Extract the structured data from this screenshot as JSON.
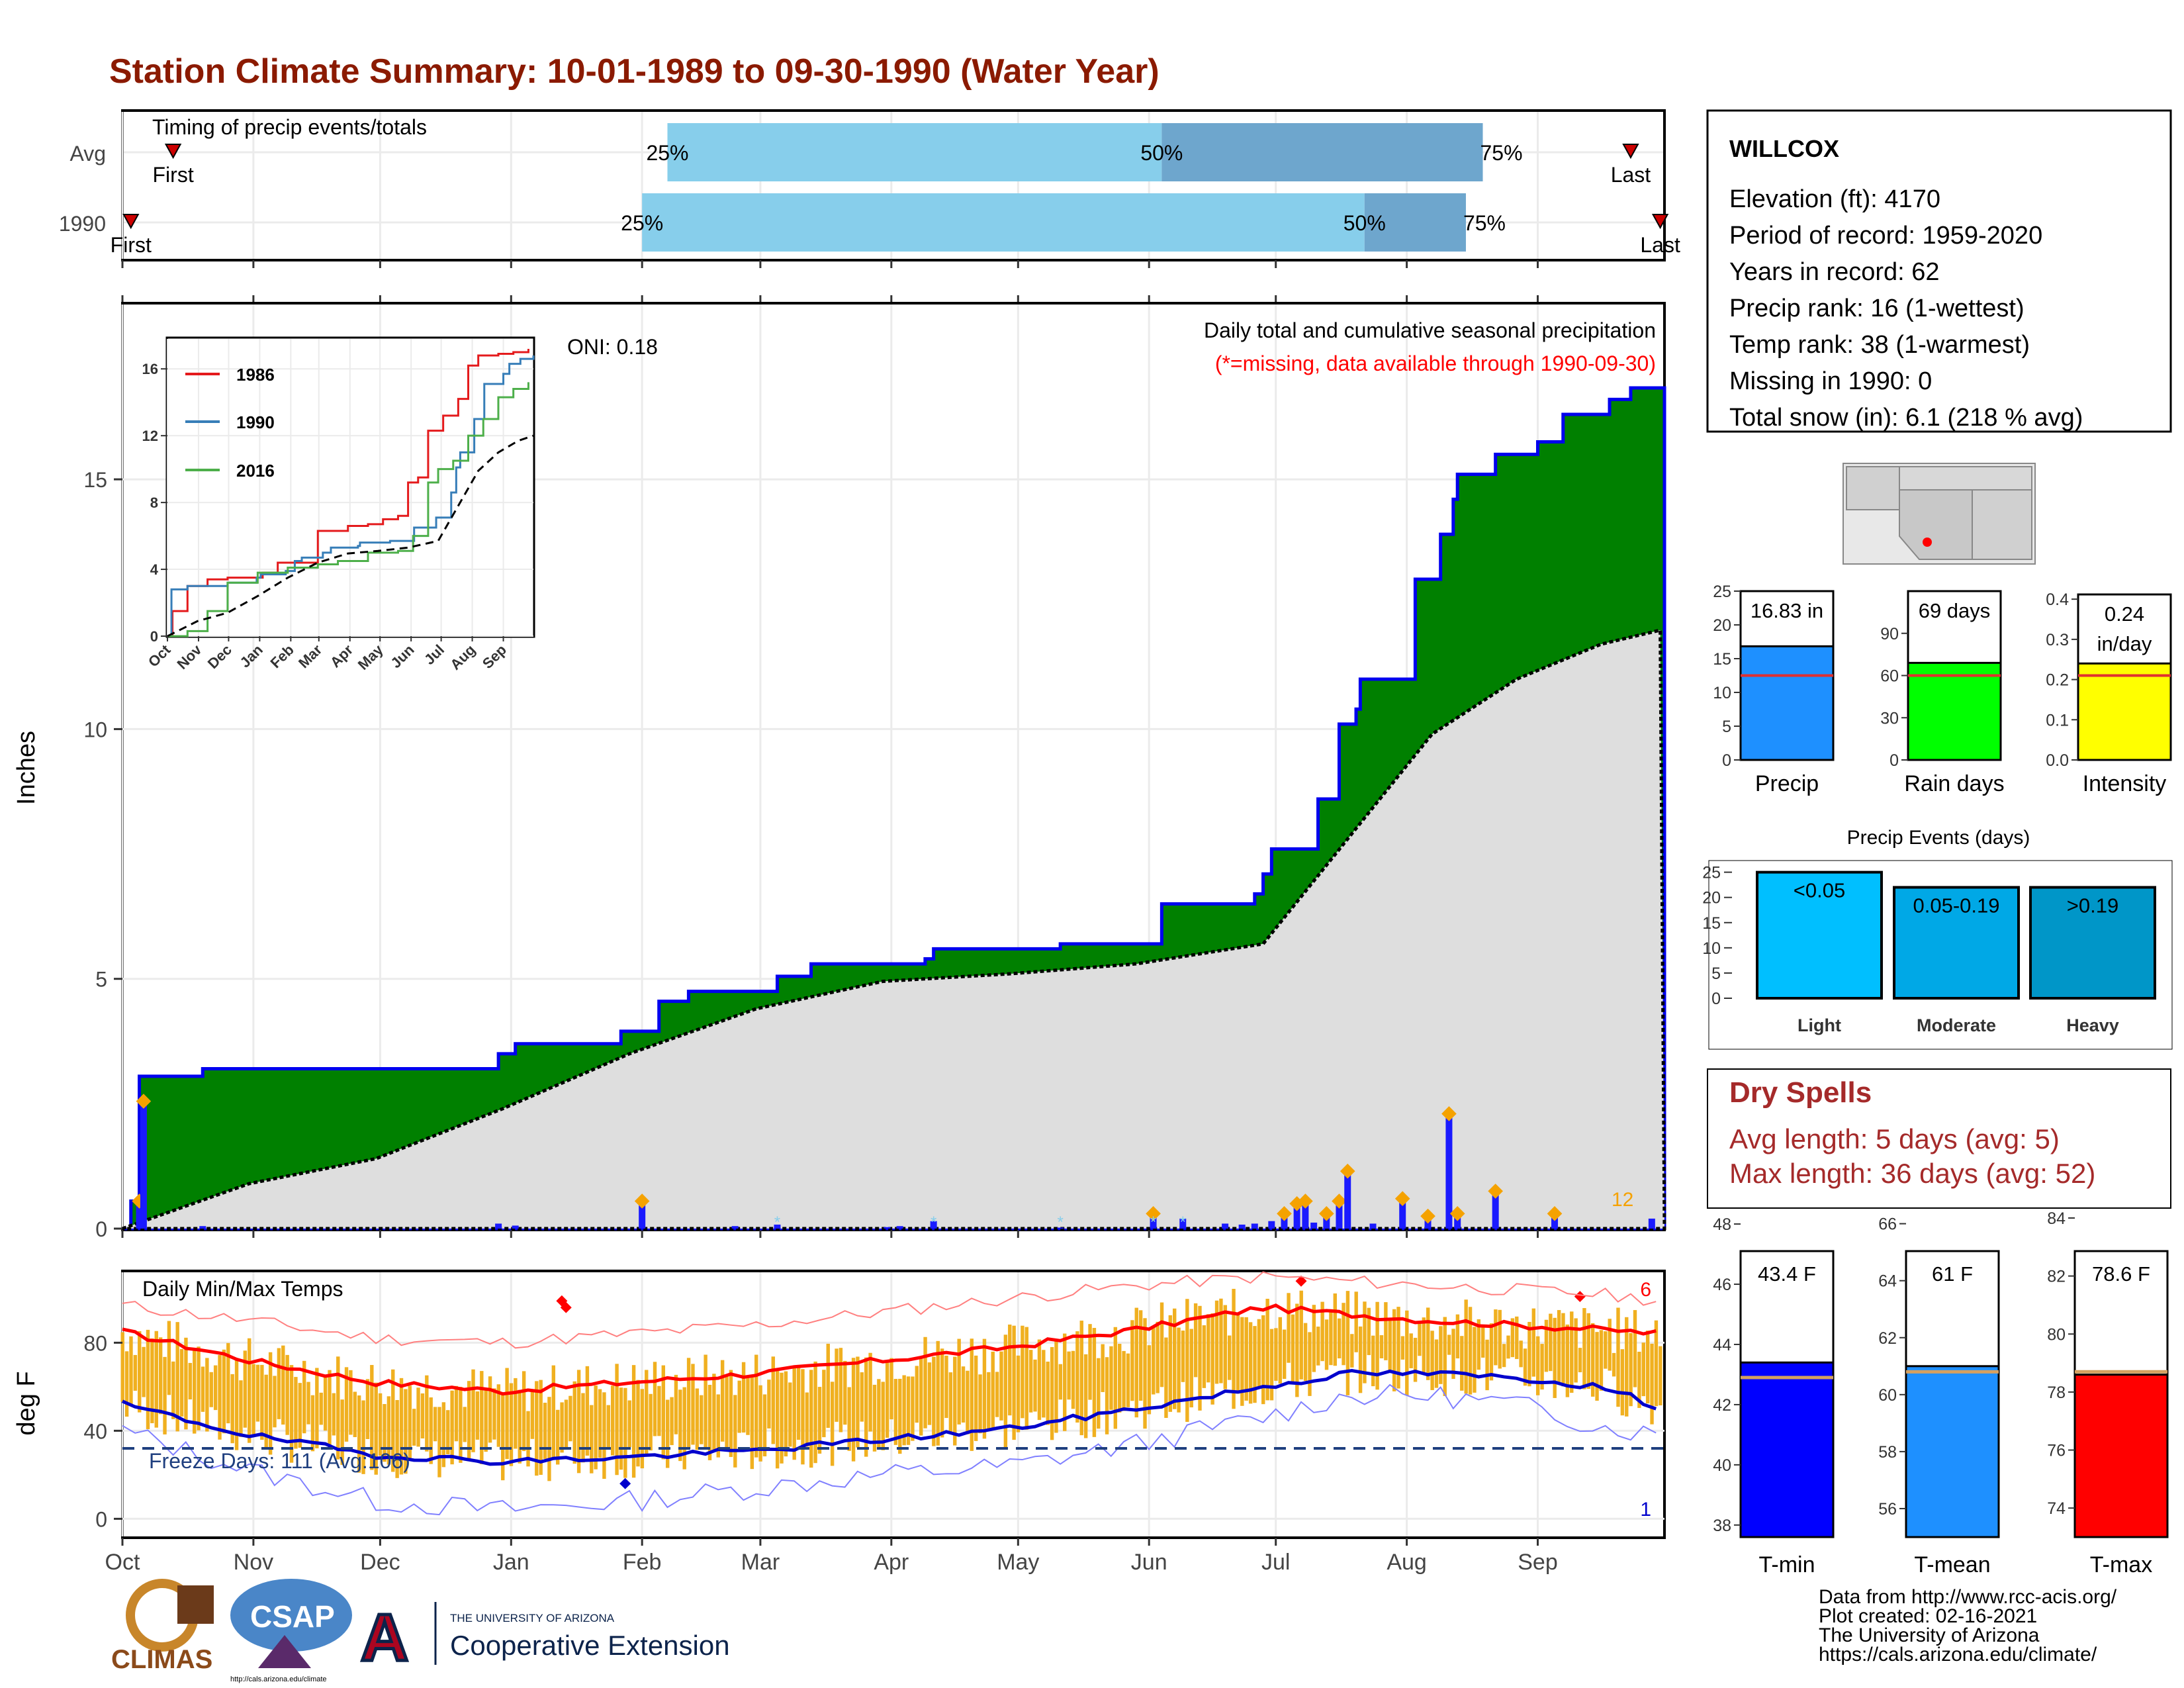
{
  "title": "Station Climate Summary: 10-01-1989 to 09-30-1990 (Water Year)",
  "colors": {
    "title": "#8b1a00",
    "green_fill": "#008000",
    "avg_fill": "#dedede",
    "bar_blue": "#1a1aff",
    "orange": "#f5a200",
    "temp_bar": "#f0b020",
    "tmax_line": "#ff0000",
    "tmin_line": "#0000cc",
    "timing_light": "#87ceeb",
    "timing_dark": "#6ea6cd",
    "dry_red": "#a52a2a"
  },
  "months": [
    "Oct",
    "Nov",
    "Dec",
    "Jan",
    "Feb",
    "Mar",
    "Apr",
    "May",
    "Jun",
    "Jul",
    "Aug",
    "Sep"
  ],
  "timing": {
    "label": "Timing of precip events/totals",
    "rows": [
      {
        "name": "Avg",
        "first": "First",
        "last": "Last",
        "p25": "25%",
        "p50": "50%",
        "p75": "75%",
        "first_day": 12,
        "q25_day": 129,
        "q50_day": 246,
        "q75_day": 322,
        "last_day": 357
      },
      {
        "name": "1990",
        "first": "First",
        "last": "Last",
        "p25": "25%",
        "p50": "50%",
        "p75": "75%",
        "first_day": 2,
        "q25_day": 123,
        "q50_day": 294,
        "q75_day": 318,
        "last_day": 364
      }
    ]
  },
  "main": {
    "ylabel": "Inches",
    "oni": "ONI: 0.18",
    "subtitle": "Daily total and cumulative seasonal precipitation",
    "missing_note": "(*=missing, data available through 1990-09-30)",
    "count_label": "12",
    "yticks": [
      "0",
      "5",
      "10",
      "15"
    ],
    "ymax": 18.5
  },
  "chart_data": [
    {
      "type": "area",
      "title": "Daily total and cumulative seasonal precipitation",
      "ylabel": "Inches",
      "ylim": [
        0,
        18.5
      ],
      "x_unit": "day of water year (Oct 1 = 0)",
      "series": [
        {
          "name": "cumulative 1990",
          "x": [
            0,
            2,
            4,
            19,
            60,
            89,
            93,
            118,
            127,
            134,
            155,
            163,
            190,
            192,
            222,
            246,
            268,
            270,
            272,
            283,
            288,
            292,
            293,
            304,
            306,
            312,
            315,
            316,
            325,
            335,
            341,
            352,
            357,
            362,
            365
          ],
          "values": [
            0,
            0.55,
            3.05,
            3.2,
            3.2,
            3.5,
            3.7,
            3.95,
            4.55,
            4.75,
            5.05,
            5.3,
            5.4,
            5.6,
            5.7,
            6.5,
            6.7,
            7.1,
            7.6,
            8.6,
            10.1,
            10.4,
            11.0,
            11.0,
            13.0,
            13.9,
            14.6,
            15.1,
            15.5,
            15.75,
            16.3,
            16.6,
            16.83,
            16.83,
            16.83
          ]
        },
        {
          "name": "average",
          "x": [
            0,
            30,
            60,
            90,
            120,
            150,
            180,
            210,
            240,
            270,
            290,
            310,
            330,
            350,
            365
          ],
          "values": [
            0,
            0.9,
            1.4,
            2.4,
            3.5,
            4.4,
            4.95,
            5.1,
            5.3,
            5.7,
            7.8,
            9.9,
            11.0,
            11.7,
            12.0
          ]
        }
      ],
      "daily_bars": {
        "x": [
          4,
          5,
          19,
          89,
          93,
          123,
          145,
          155,
          181,
          184,
          192,
          222,
          244,
          251,
          261,
          265,
          268,
          272,
          275,
          278,
          280,
          282,
          285,
          288,
          290,
          296,
          303,
          309,
          314,
          316,
          325,
          339,
          362
        ],
        "values": [
          0.55,
          2.55,
          0.05,
          0.1,
          0.06,
          0.55,
          0.05,
          0.08,
          0.03,
          0.05,
          0.15,
          0.02,
          0.3,
          0.2,
          0.1,
          0.08,
          0.1,
          0.15,
          0.3,
          0.5,
          0.55,
          0.12,
          0.3,
          0.55,
          1.15,
          0.1,
          0.6,
          0.25,
          2.3,
          0.3,
          0.75,
          0.3,
          0.2
        ]
      }
    },
    {
      "type": "line",
      "title": "",
      "x_labels": [
        "Oct",
        "Nov",
        "Dec",
        "Jan",
        "Feb",
        "Mar",
        "Apr",
        "May",
        "Jun",
        "Jul",
        "Aug",
        "Sep"
      ],
      "ylim": [
        0,
        17
      ],
      "yticks": [
        0,
        4,
        8,
        12,
        16
      ],
      "series": [
        {
          "name": "1986",
          "x": [
            0,
            5,
            20,
            40,
            60,
            95,
            110,
            120,
            150,
            180,
            200,
            215,
            230,
            240,
            250,
            260,
            275,
            290,
            300,
            310,
            330,
            345,
            360
          ],
          "values": [
            0,
            1.5,
            3,
            3.4,
            3.5,
            3.8,
            4.4,
            4.4,
            6.3,
            6.6,
            6.7,
            7.0,
            7.2,
            9.2,
            9.5,
            12.3,
            13.2,
            14.2,
            16.2,
            16.8,
            16.9,
            17.0,
            17.2
          ]
        },
        {
          "name": "1990",
          "x": [
            0,
            4,
            20,
            60,
            89,
            93,
            118,
            127,
            134,
            155,
            163,
            190,
            192,
            222,
            246,
            268,
            283,
            288,
            292,
            306,
            316,
            335,
            341,
            352,
            365
          ],
          "values": [
            0,
            2.8,
            3.0,
            3.2,
            3.5,
            3.7,
            3.9,
            4.5,
            4.7,
            5.0,
            5.3,
            5.4,
            5.6,
            5.7,
            6.5,
            7.1,
            8.6,
            10.1,
            11.0,
            13.0,
            15.1,
            15.7,
            16.3,
            16.6,
            16.8
          ]
        },
        {
          "name": "2016",
          "x": [
            0,
            20,
            40,
            60,
            90,
            120,
            150,
            170,
            200,
            230,
            245,
            260,
            270,
            285,
            300,
            315,
            330,
            345,
            360
          ],
          "values": [
            0,
            0.3,
            1.5,
            3.2,
            3.8,
            4.1,
            4.3,
            4.5,
            5.0,
            5.1,
            6.0,
            9.2,
            10.0,
            10.5,
            12.0,
            13.0,
            14.3,
            14.8,
            15.2
          ]
        },
        {
          "name": "average",
          "x": [
            0,
            30,
            60,
            90,
            120,
            150,
            180,
            210,
            240,
            270,
            290,
            310,
            330,
            350,
            365
          ],
          "values": [
            0,
            0.9,
            1.4,
            2.4,
            3.5,
            4.4,
            4.95,
            5.1,
            5.3,
            5.7,
            7.8,
            9.9,
            11.0,
            11.7,
            12.0
          ]
        }
      ]
    },
    {
      "type": "bar",
      "title": "",
      "categories": [
        "Precip",
        "Rain days",
        "Intensity"
      ],
      "values": [
        16.83,
        69,
        0.24
      ],
      "averages": [
        12.5,
        60,
        0.21
      ],
      "ylims": [
        [
          0,
          25
        ],
        [
          0,
          120
        ],
        [
          0,
          0.42
        ]
      ]
    },
    {
      "type": "bar",
      "title": "Precip Events (days)",
      "categories": [
        "Light",
        "Moderate",
        "Heavy"
      ],
      "labels": [
        "<0.05",
        "0.05-0.19",
        ">0.19"
      ],
      "values": [
        25,
        22,
        22
      ],
      "ylim": [
        0,
        26
      ]
    },
    {
      "type": "line",
      "title": "Daily Min/Max Temps",
      "ylabel": "deg F",
      "ylim": [
        -8,
        112
      ],
      "x_labels": [
        "Oct",
        "Nov",
        "Dec",
        "Jan",
        "Feb",
        "Mar",
        "Apr",
        "May",
        "Jun",
        "Jul",
        "Aug",
        "Sep"
      ],
      "series": [
        {
          "name": "avg max",
          "x": [
            0,
            30,
            60,
            90,
            120,
            150,
            180,
            210,
            240,
            270,
            290,
            310,
            330,
            350,
            365
          ],
          "values": [
            85,
            72,
            62,
            58,
            62,
            66,
            72,
            78,
            86,
            96,
            93,
            90,
            88,
            86,
            84
          ]
        },
        {
          "name": "avg min",
          "x": [
            0,
            30,
            60,
            90,
            120,
            150,
            180,
            210,
            240,
            270,
            290,
            310,
            330,
            350,
            365
          ],
          "values": [
            52,
            38,
            29,
            26,
            28,
            31,
            36,
            41,
            50,
            60,
            66,
            66,
            64,
            60,
            50
          ]
        },
        {
          "name": "record high",
          "x": [
            0,
            30,
            60,
            90,
            120,
            150,
            180,
            210,
            240,
            270,
            290,
            310,
            330,
            350,
            365
          ],
          "values": [
            97,
            90,
            82,
            80,
            84,
            88,
            94,
            100,
            106,
            110,
            108,
            106,
            104,
            102,
            99
          ]
        },
        {
          "name": "record low",
          "x": [
            0,
            30,
            60,
            90,
            120,
            150,
            180,
            210,
            240,
            270,
            290,
            310,
            330,
            350,
            365
          ],
          "values": [
            40,
            22,
            8,
            4,
            8,
            14,
            20,
            24,
            34,
            46,
            56,
            56,
            52,
            42,
            38
          ]
        }
      ],
      "freeze_line": 32
    },
    {
      "type": "bar",
      "title": "",
      "categories": [
        "T-min",
        "T-mean",
        "T-max"
      ],
      "values": [
        43.4,
        61,
        78.6
      ],
      "averages": [
        42.9,
        60.8,
        78.7
      ],
      "ylims": [
        [
          37.6,
          48.2
        ],
        [
          55,
          66.2
        ],
        [
          73,
          84
        ]
      ]
    }
  ],
  "inset": {
    "legend": [
      "1986",
      "1990",
      "2016"
    ],
    "yticks": [
      "0",
      "4",
      "8",
      "12",
      "16"
    ],
    "xticks": [
      "Oct",
      "Nov",
      "Dec",
      "Jan",
      "Feb",
      "Mar",
      "Apr",
      "May",
      "Jun",
      "Jul",
      "Aug",
      "Sep"
    ]
  },
  "temps": {
    "label": "Daily Min/Max Temps",
    "ylabel": "deg F",
    "yticks": [
      "0",
      "40",
      "80"
    ],
    "freeze": "Freeze Days: 111 (Avg:106)",
    "high_count": "6",
    "low_count": "1"
  },
  "station": {
    "name": "WILLCOX",
    "lines": [
      "Elevation (ft): 4170",
      "Period of record: 1959-2020",
      "Years in record: 62",
      "Precip rank: 16 (1-wettest)",
      "Temp rank: 38 (1-warmest)",
      "Missing in 1990: 0",
      "Total snow (in): 6.1 (218 % avg)"
    ]
  },
  "mini_bars": [
    {
      "label": "Precip",
      "value_text": "16.83 in",
      "ticks": [
        "0",
        "5",
        "10",
        "15",
        "20",
        "25"
      ],
      "color": "#1e90ff"
    },
    {
      "label": "Rain days",
      "value_text": "69 days",
      "ticks": [
        "0",
        "30",
        "60",
        "90"
      ],
      "color": "#00ff00"
    },
    {
      "label": "Intensity",
      "value_text": "0.24",
      "value_text2": "in/day",
      "ticks": [
        "0.0",
        "0.1",
        "0.2",
        "0.3",
        "0.4"
      ],
      "color": "#ffff00"
    }
  ],
  "events": {
    "title": "Precip Events (days)",
    "ticks": [
      "0",
      "5",
      "10",
      "15",
      "20",
      "25"
    ],
    "colors": [
      "#00bfff",
      "#00a8e6",
      "#0096c8"
    ]
  },
  "dry_spells": {
    "title": "Dry Spells",
    "avg": "Avg length: 5 days (avg: 5)",
    "max": "Max length: 36 days (avg: 52)"
  },
  "temp_bars": [
    {
      "label": "T-min",
      "value_text": "43.4 F",
      "ticks": [
        "38",
        "40",
        "42",
        "44",
        "46",
        "48"
      ],
      "color": "#0000ff"
    },
    {
      "label": "T-mean",
      "value_text": "61 F",
      "ticks": [
        "56",
        "58",
        "60",
        "62",
        "64",
        "66"
      ],
      "color": "#1e90ff"
    },
    {
      "label": "T-max",
      "value_text": "78.6 F",
      "ticks": [
        "74",
        "76",
        "78",
        "80",
        "82",
        "84"
      ],
      "color": "#ff0000"
    }
  ],
  "footer": {
    "lines": [
      "Data from http://www.rcc-acis.org/",
      "Plot created: 02-16-2021",
      "The University of Arizona",
      "https://cals.arizona.edu/climate/"
    ]
  },
  "logos": {
    "climas": "CLIMAS",
    "csap": "CSAP",
    "csap_url": "http://cals.arizona.edu/climate",
    "ua_letter": "A",
    "ua_small": "THE UNIVERSITY OF ARIZONA",
    "ua_big": "Cooperative Extension"
  }
}
